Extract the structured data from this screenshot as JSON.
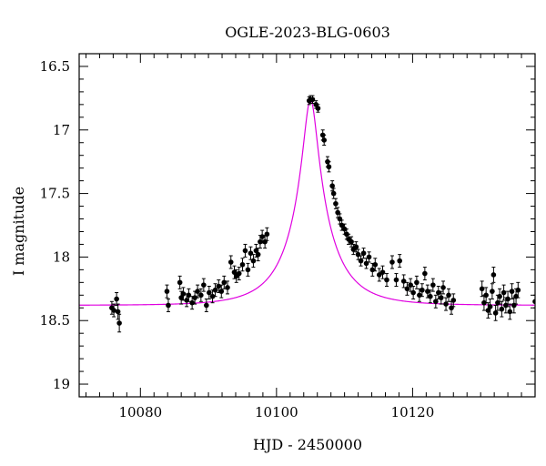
{
  "chart_data": {
    "type": "scatter",
    "title": "OGLE-2023-BLG-0603",
    "xlabel": "HJD - 2450000",
    "ylabel": "I magnitude",
    "xlim": [
      10071,
      10138
    ],
    "ylim": [
      19.1,
      16.4
    ],
    "y_inverted": true,
    "x_ticks": [
      10080,
      10100,
      10120
    ],
    "x_tick_labels": [
      "10080",
      "10100",
      "10120"
    ],
    "y_ticks": [
      16.5,
      17,
      17.5,
      18,
      18.5,
      19
    ],
    "y_tick_labels": [
      "16.5",
      "17",
      "17.5",
      "18",
      "18.5",
      "19"
    ],
    "grid": false,
    "model": {
      "color": "#e000e0",
      "t0": 10105.0,
      "u0": 0.15,
      "tE": 6.5,
      "base_mag": 18.38,
      "peak_mag": 16.76
    },
    "points": [
      [
        10075.8,
        18.4,
        0.05
      ],
      [
        10076.1,
        18.42,
        0.05
      ],
      [
        10076.5,
        18.33,
        0.05
      ],
      [
        10076.7,
        18.43,
        0.06
      ],
      [
        10076.9,
        18.52,
        0.07
      ],
      [
        10083.9,
        18.27,
        0.05
      ],
      [
        10084.1,
        18.38,
        0.05
      ],
      [
        10085.8,
        18.2,
        0.05
      ],
      [
        10086.0,
        18.32,
        0.05
      ],
      [
        10086.3,
        18.29,
        0.05
      ],
      [
        10086.8,
        18.34,
        0.05
      ],
      [
        10087.1,
        18.3,
        0.05
      ],
      [
        10087.6,
        18.36,
        0.05
      ],
      [
        10088.0,
        18.32,
        0.05
      ],
      [
        10088.4,
        18.27,
        0.05
      ],
      [
        10088.9,
        18.3,
        0.05
      ],
      [
        10089.3,
        18.22,
        0.05
      ],
      [
        10089.7,
        18.38,
        0.05
      ],
      [
        10090.1,
        18.28,
        0.05
      ],
      [
        10090.6,
        18.31,
        0.05
      ],
      [
        10091.0,
        18.26,
        0.05
      ],
      [
        10091.5,
        18.23,
        0.05
      ],
      [
        10091.9,
        18.27,
        0.05
      ],
      [
        10092.3,
        18.2,
        0.05
      ],
      [
        10092.8,
        18.24,
        0.05
      ],
      [
        10093.3,
        18.04,
        0.05
      ],
      [
        10093.8,
        18.12,
        0.05
      ],
      [
        10094.1,
        18.15,
        0.05
      ],
      [
        10094.5,
        18.13,
        0.05
      ],
      [
        10095.0,
        18.06,
        0.05
      ],
      [
        10095.4,
        17.95,
        0.05
      ],
      [
        10095.8,
        18.1,
        0.05
      ],
      [
        10096.2,
        17.97,
        0.05
      ],
      [
        10096.6,
        18.03,
        0.05
      ],
      [
        10097.0,
        17.95,
        0.05
      ],
      [
        10097.3,
        17.98,
        0.05
      ],
      [
        10097.6,
        17.88,
        0.05
      ],
      [
        10097.9,
        17.84,
        0.05
      ],
      [
        10098.3,
        17.88,
        0.05
      ],
      [
        10098.6,
        17.82,
        0.05
      ],
      [
        10104.8,
        16.77,
        0.03
      ],
      [
        10105.0,
        16.76,
        0.03
      ],
      [
        10105.3,
        16.76,
        0.03
      ],
      [
        10105.8,
        16.8,
        0.03
      ],
      [
        10106.1,
        16.83,
        0.03
      ],
      [
        10106.8,
        17.04,
        0.04
      ],
      [
        10107.0,
        17.08,
        0.04
      ],
      [
        10107.5,
        17.25,
        0.04
      ],
      [
        10107.7,
        17.29,
        0.04
      ],
      [
        10108.2,
        17.44,
        0.04
      ],
      [
        10108.4,
        17.5,
        0.04
      ],
      [
        10108.7,
        17.58,
        0.04
      ],
      [
        10109.0,
        17.65,
        0.04
      ],
      [
        10109.3,
        17.7,
        0.04
      ],
      [
        10109.6,
        17.75,
        0.04
      ],
      [
        10110.0,
        17.78,
        0.04
      ],
      [
        10110.3,
        17.82,
        0.04
      ],
      [
        10110.6,
        17.86,
        0.04
      ],
      [
        10111.0,
        17.88,
        0.04
      ],
      [
        10111.3,
        17.94,
        0.04
      ],
      [
        10111.7,
        17.92,
        0.04
      ],
      [
        10112.0,
        17.98,
        0.04
      ],
      [
        10112.4,
        18.03,
        0.04
      ],
      [
        10112.8,
        17.97,
        0.04
      ],
      [
        10113.2,
        18.05,
        0.04
      ],
      [
        10113.6,
        18.0,
        0.04
      ],
      [
        10114.1,
        18.1,
        0.05
      ],
      [
        10114.5,
        18.06,
        0.05
      ],
      [
        10115.1,
        18.14,
        0.05
      ],
      [
        10115.6,
        18.12,
        0.05
      ],
      [
        10116.2,
        18.18,
        0.05
      ],
      [
        10117.0,
        18.04,
        0.05
      ],
      [
        10117.6,
        18.18,
        0.05
      ],
      [
        10118.1,
        18.03,
        0.05
      ],
      [
        10118.7,
        18.19,
        0.05
      ],
      [
        10119.2,
        18.25,
        0.05
      ],
      [
        10119.7,
        18.22,
        0.05
      ],
      [
        10120.1,
        18.28,
        0.05
      ],
      [
        10120.6,
        18.2,
        0.05
      ],
      [
        10121.0,
        18.3,
        0.05
      ],
      [
        10121.4,
        18.26,
        0.05
      ],
      [
        10121.8,
        18.13,
        0.05
      ],
      [
        10122.2,
        18.27,
        0.05
      ],
      [
        10122.6,
        18.31,
        0.05
      ],
      [
        10123.0,
        18.22,
        0.05
      ],
      [
        10123.4,
        18.35,
        0.05
      ],
      [
        10123.8,
        18.28,
        0.05
      ],
      [
        10124.2,
        18.32,
        0.05
      ],
      [
        10124.5,
        18.24,
        0.05
      ],
      [
        10124.9,
        18.37,
        0.05
      ],
      [
        10125.3,
        18.3,
        0.05
      ],
      [
        10125.7,
        18.4,
        0.05
      ],
      [
        10126.0,
        18.34,
        0.05
      ],
      [
        10130.2,
        18.25,
        0.06
      ],
      [
        10130.5,
        18.36,
        0.06
      ],
      [
        10130.8,
        18.3,
        0.06
      ],
      [
        10131.1,
        18.42,
        0.06
      ],
      [
        10131.4,
        18.39,
        0.06
      ],
      [
        10131.7,
        18.27,
        0.06
      ],
      [
        10131.9,
        18.14,
        0.06
      ],
      [
        10132.2,
        18.44,
        0.06
      ],
      [
        10132.5,
        18.36,
        0.06
      ],
      [
        10132.8,
        18.31,
        0.06
      ],
      [
        10133.1,
        18.41,
        0.06
      ],
      [
        10133.4,
        18.28,
        0.06
      ],
      [
        10133.7,
        18.38,
        0.06
      ],
      [
        10134.0,
        18.33,
        0.06
      ],
      [
        10134.3,
        18.43,
        0.06
      ],
      [
        10134.6,
        18.27,
        0.06
      ],
      [
        10134.9,
        18.38,
        0.06
      ],
      [
        10135.2,
        18.31,
        0.06
      ],
      [
        10135.5,
        18.26,
        0.06
      ],
      [
        10138.0,
        18.35,
        0.05
      ],
      [
        10138.3,
        18.4,
        0.05
      ]
    ]
  }
}
